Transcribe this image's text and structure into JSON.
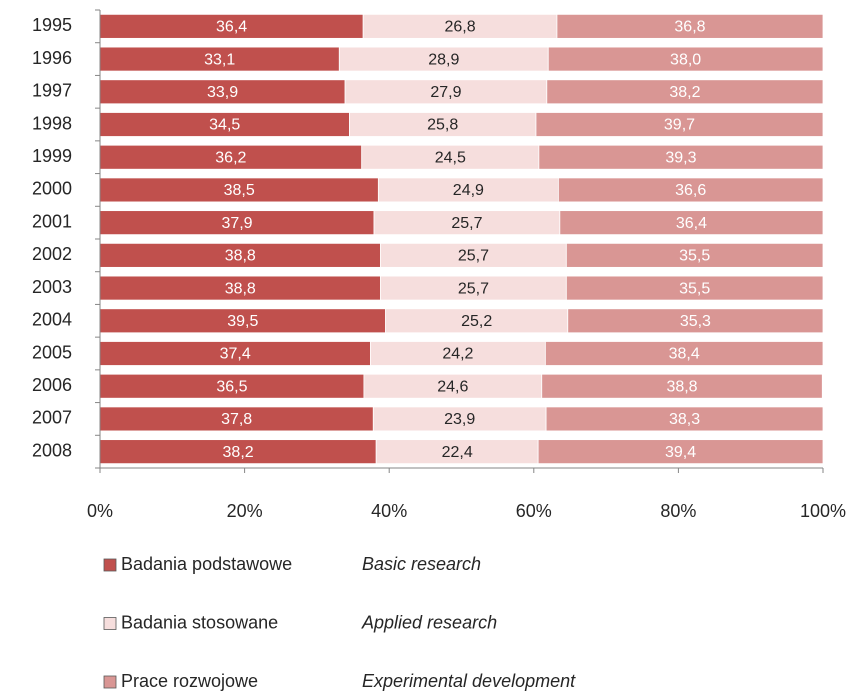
{
  "chart_data": {
    "type": "stacked_barh",
    "categories": [
      "1995",
      "1996",
      "1997",
      "1998",
      "1999",
      "2000",
      "2001",
      "2002",
      "2003",
      "2004",
      "2005",
      "2006",
      "2007",
      "2008"
    ],
    "series": [
      {
        "name": "Badania podstawowe",
        "translation": "Basic research",
        "color": "#c0504d",
        "label_color": "#ffffff",
        "values": [
          36.4,
          33.1,
          33.9,
          34.5,
          36.2,
          38.5,
          37.9,
          38.8,
          38.8,
          39.5,
          37.4,
          36.5,
          37.8,
          38.2
        ],
        "value_labels": [
          "36,4",
          "33,1",
          "33,9",
          "34,5",
          "36,2",
          "38,5",
          "37,9",
          "38,8",
          "38,8",
          "39,5",
          "37,4",
          "36,5",
          "37,8",
          "38,2"
        ]
      },
      {
        "name": "Badania stosowane",
        "translation": "Applied research",
        "color": "#f6dedd",
        "label_color": "#262626",
        "values": [
          26.8,
          28.9,
          27.9,
          25.8,
          24.5,
          24.9,
          25.7,
          25.7,
          25.7,
          25.2,
          24.2,
          24.6,
          23.9,
          22.4
        ],
        "value_labels": [
          "26,8",
          "28,9",
          "27,9",
          "25,8",
          "24,5",
          "24,9",
          "25,7",
          "25,7",
          "25,7",
          "25,2",
          "24,2",
          "24,6",
          "23,9",
          "22,4"
        ]
      },
      {
        "name": "Prace rozwojowe",
        "translation": "Experimental development",
        "color": "#d99694",
        "label_color": "#ffffff",
        "values": [
          36.8,
          38.0,
          38.2,
          39.7,
          39.3,
          36.6,
          36.4,
          35.5,
          35.5,
          35.3,
          38.4,
          38.8,
          38.3,
          39.4
        ],
        "value_labels": [
          "36,8",
          "38,0",
          "38,2",
          "39,7",
          "39,3",
          "36,6",
          "36,4",
          "35,5",
          "35,5",
          "35,3",
          "38,4",
          "38,8",
          "38,3",
          "39,4"
        ]
      }
    ],
    "xlim": [
      0,
      100
    ],
    "xticks": [
      {
        "value": 0,
        "label": "0%"
      },
      {
        "value": 20,
        "label": "20%"
      },
      {
        "value": 40,
        "label": "40%"
      },
      {
        "value": 60,
        "label": "60%"
      },
      {
        "value": 80,
        "label": "80%"
      },
      {
        "value": 100,
        "label": "100%"
      }
    ]
  }
}
